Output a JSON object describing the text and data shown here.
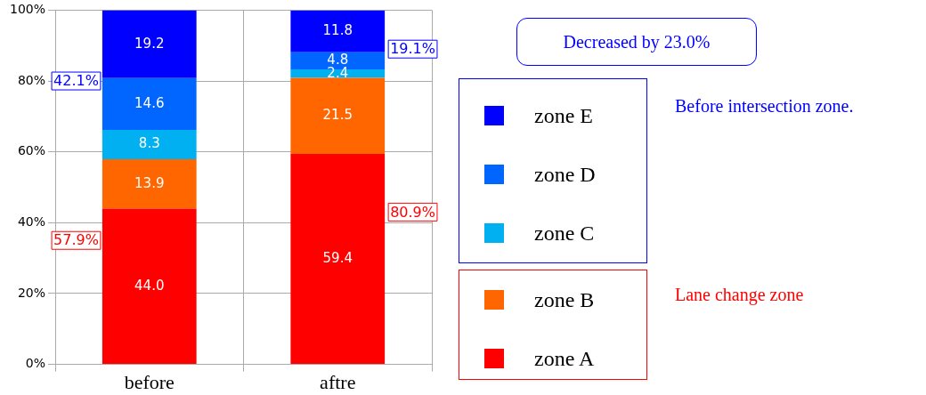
{
  "chart_data": {
    "type": "bar",
    "stacked": true,
    "categories": [
      "before",
      "aftre"
    ],
    "series": [
      {
        "name": "zone A",
        "color": "#ff0000",
        "values": [
          44.0,
          59.4
        ],
        "value_labels": [
          "44.0",
          "59.4"
        ]
      },
      {
        "name": "zone B",
        "color": "#ff6600",
        "values": [
          13.9,
          21.5
        ],
        "value_labels": [
          "13.9",
          "21.5"
        ]
      },
      {
        "name": "zone C",
        "color": "#00b0f0",
        "values": [
          8.3,
          2.4
        ],
        "value_labels": [
          "8.3",
          "2.4"
        ]
      },
      {
        "name": "zone D",
        "color": "#0066ff",
        "values": [
          14.6,
          4.8
        ],
        "value_labels": [
          "14.6",
          "4.8"
        ]
      },
      {
        "name": "zone E",
        "color": "#0000ff",
        "values": [
          19.2,
          11.8
        ],
        "value_labels": [
          "19.2",
          "11.8"
        ]
      }
    ],
    "ylim": [
      0,
      100
    ],
    "yticks": [
      {
        "value": 0,
        "label": "0%"
      },
      {
        "value": 20,
        "label": "20%"
      },
      {
        "value": 40,
        "label": "40%"
      },
      {
        "value": 60,
        "label": "60%"
      },
      {
        "value": 80,
        "label": "80%"
      },
      {
        "value": 100,
        "label": "100%"
      }
    ],
    "grid": true,
    "legend": "right",
    "annotations": [
      "42.1%",
      "57.9%",
      "19.1%",
      "80.9%",
      "Decreased by 23.0%",
      "Before intersection zone.",
      "Lane change zone"
    ]
  }
}
